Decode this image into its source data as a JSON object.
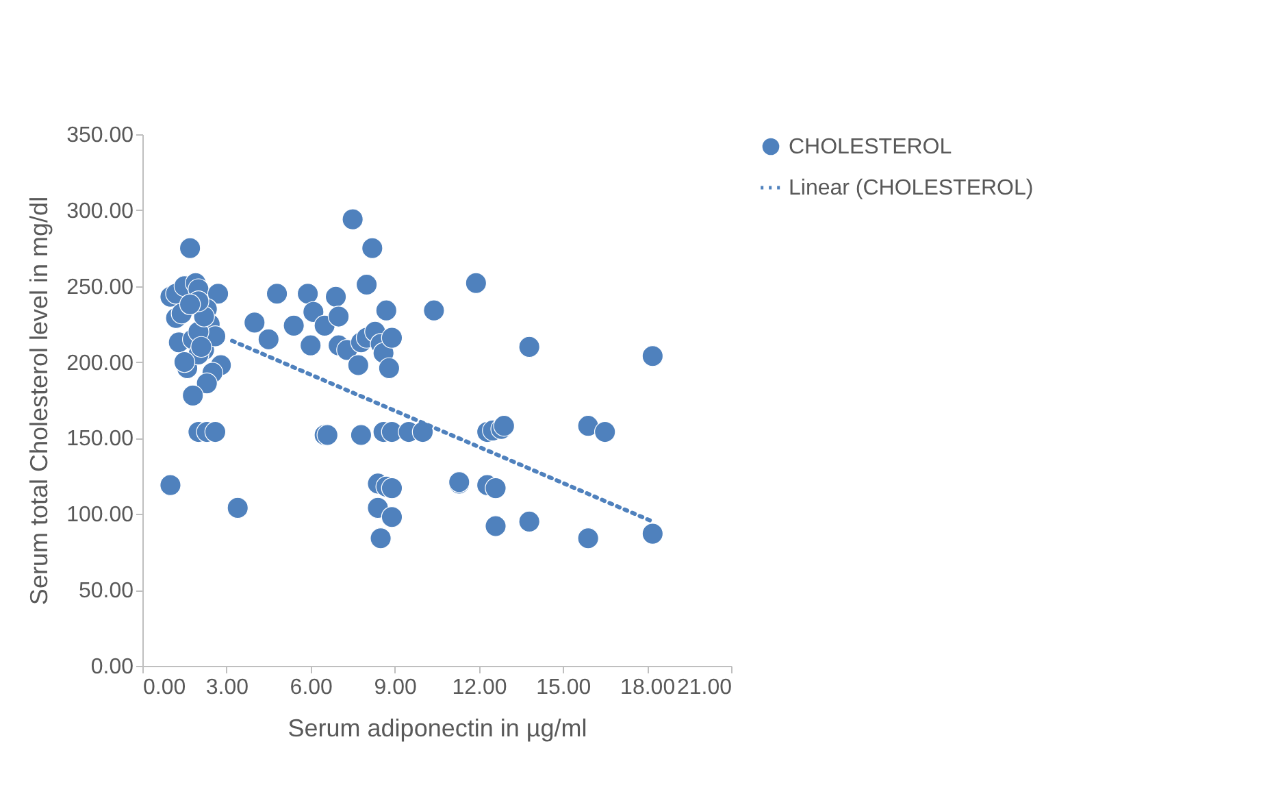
{
  "chart_data": {
    "type": "scatter",
    "xlabel": "Serum adiponectin in µg/ml",
    "ylabel": "Serum total Cholesterol level in mg/dl",
    "xlim": [
      0,
      21
    ],
    "ylim": [
      0,
      350
    ],
    "xticks": [
      {
        "value": 0,
        "label": "0.00"
      },
      {
        "value": 3,
        "label": "3.00"
      },
      {
        "value": 6,
        "label": "6.00"
      },
      {
        "value": 9,
        "label": "9.00"
      },
      {
        "value": 12,
        "label": "12.00"
      },
      {
        "value": 15,
        "label": "15.00"
      },
      {
        "value": 18,
        "label": "18.00"
      },
      {
        "value": 21,
        "label": "21.00"
      }
    ],
    "yticks": [
      {
        "value": 0,
        "label": "0.00"
      },
      {
        "value": 50,
        "label": "50.00"
      },
      {
        "value": 100,
        "label": "100.00"
      },
      {
        "value": 150,
        "label": "150.00"
      },
      {
        "value": 200,
        "label": "200.00"
      },
      {
        "value": 250,
        "label": "250.00"
      },
      {
        "value": 300,
        "label": "300.00"
      },
      {
        "value": 350,
        "label": "350.00"
      }
    ],
    "grid": false,
    "legend": "right",
    "series": [
      {
        "name": "CHOLESTEROL",
        "color": "#4f81bd",
        "marker": "circle",
        "x": [
          1.0,
          1.2,
          1.5,
          1.7,
          1.9,
          2.0,
          2.7,
          1.2,
          1.4,
          2.3,
          2.4,
          1.3,
          1.8,
          2.2,
          2.6,
          1.6,
          2.0,
          2.8,
          2.5,
          2.3,
          1.8,
          1.5,
          2.0,
          2.2,
          1.0,
          3.4,
          2.0,
          2.3,
          2.6,
          2.0,
          1.7,
          2.1,
          4.0,
          4.5,
          4.8,
          5.4,
          5.9,
          6.0,
          6.1,
          6.5,
          6.5,
          6.6,
          6.9,
          7.0,
          7.0,
          7.3,
          7.5,
          7.7,
          7.8,
          7.8,
          8.0,
          8.0,
          8.2,
          8.3,
          8.5,
          8.6,
          8.7,
          8.8,
          8.9,
          8.6,
          8.9,
          9.5,
          10.0,
          10.4,
          8.4,
          8.7,
          8.9,
          8.4,
          8.9,
          8.5,
          11.9,
          11.3,
          11.3,
          12.3,
          12.5,
          12.8,
          12.9,
          12.3,
          12.6,
          12.6,
          13.8,
          13.8,
          15.9,
          16.5,
          15.9,
          18.2,
          18.2
        ],
        "values": [
          243,
          245,
          250,
          275,
          252,
          248,
          245,
          229,
          232,
          235,
          225,
          213,
          215,
          208,
          217,
          196,
          205,
          198,
          193,
          186,
          178,
          200,
          220,
          230,
          119,
          104,
          154,
          154,
          154,
          240,
          238,
          210,
          226,
          215,
          245,
          224,
          245,
          211,
          233,
          224,
          152,
          152,
          243,
          230,
          211,
          208,
          294,
          198,
          213,
          152,
          251,
          216,
          275,
          220,
          212,
          206,
          234,
          196,
          216,
          154,
          154,
          154,
          154,
          234,
          120,
          118,
          117,
          104,
          98,
          84,
          252,
          120,
          121,
          154,
          155,
          156,
          158,
          119,
          117,
          92,
          95,
          210,
          158,
          154,
          84,
          204,
          87
        ]
      },
      {
        "name": "Linear (CHOLESTEROL)",
        "type": "line",
        "color": "#4f81bd",
        "line_style": "dotted",
        "marker": "none",
        "x": [
          3.2,
          18.2
        ],
        "values": [
          214,
          95
        ]
      }
    ]
  }
}
